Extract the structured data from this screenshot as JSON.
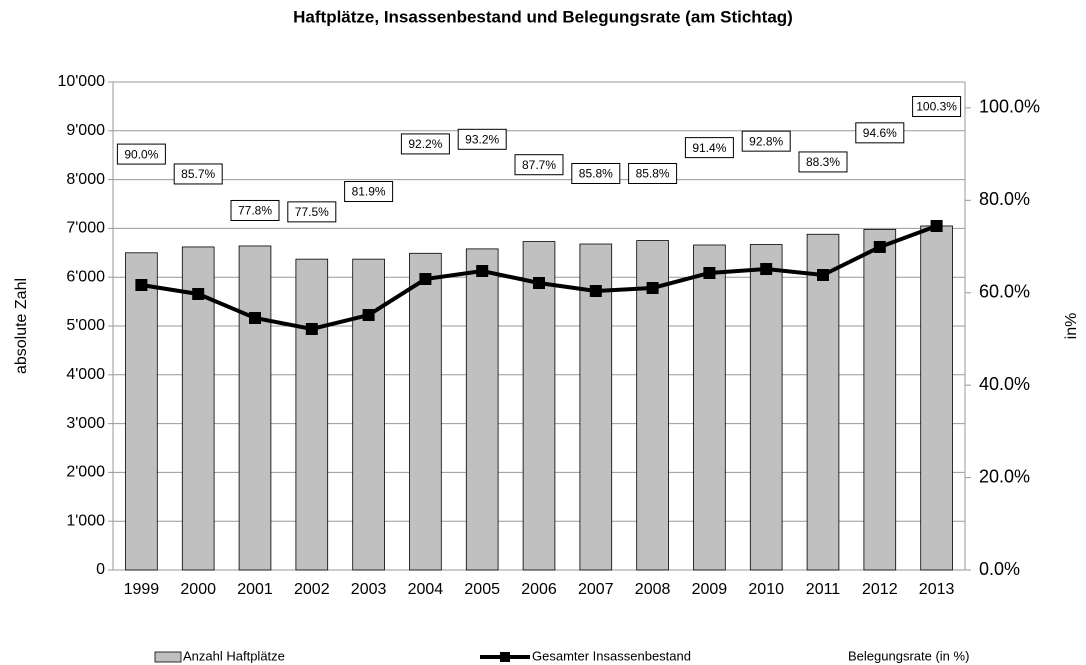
{
  "chart_data": {
    "type": "bar",
    "title": "Haftplätze, Insassenbestand und Belegungsrate (am Stichtag)",
    "y_label": "absolute Zahl",
    "y2_label": "in%",
    "categories": [
      "1999",
      "2000",
      "2001",
      "2002",
      "2003",
      "2004",
      "2005",
      "2006",
      "2007",
      "2008",
      "2009",
      "2010",
      "2011",
      "2012",
      "2013"
    ],
    "series": [
      {
        "name": "Anzahl Haftplätze",
        "type": "bar",
        "color": "#c0c0c0",
        "values": [
          6500,
          6620,
          6640,
          6370,
          6370,
          6490,
          6580,
          6730,
          6680,
          6750,
          6660,
          6670,
          6880,
          6980,
          7050
        ]
      },
      {
        "name": "Gesamter Insassenbestand",
        "type": "line",
        "color": "#000000",
        "values": [
          5840,
          5656,
          5164,
          4939,
          5225,
          5963,
          6127,
          5881,
          5717,
          5779,
          6086,
          6168,
          6045,
          6619,
          7049
        ]
      },
      {
        "name": "Belegungsrate (in %)",
        "type": "label",
        "axis": "y2",
        "values": [
          90.0,
          85.7,
          77.8,
          77.5,
          81.9,
          92.2,
          93.2,
          87.7,
          85.8,
          85.8,
          91.4,
          92.8,
          88.3,
          94.6,
          100.3
        ],
        "value_labels": [
          "90.0%",
          "85.7%",
          "77.8%",
          "77.5%",
          "81.9%",
          "92.2%",
          "93.2%",
          "87.7%",
          "85.8%",
          "85.8%",
          "91.4%",
          "92.8%",
          "88.3%",
          "94.6%",
          "100.3%"
        ]
      }
    ],
    "ylim": [
      0,
      10000
    ],
    "yticks": [
      0,
      {
        "value": 1000,
        "label": "1'000"
      },
      {
        "value": 2000,
        "label": "2'000"
      },
      {
        "value": 3000,
        "label": "3'000"
      },
      {
        "value": 4000,
        "label": "4'000"
      },
      {
        "value": 5000,
        "label": "5'000"
      },
      {
        "value": 6000,
        "label": "6'000"
      },
      {
        "value": 7000,
        "label": "7'000"
      },
      {
        "value": 8000,
        "label": "8'000"
      },
      {
        "value": 9000,
        "label": "9'000"
      },
      {
        "value": 10000,
        "label": "10'000"
      }
    ],
    "y2lim": [
      0,
      105.6
    ],
    "y2ticks": [
      {
        "value": 0,
        "label": "0.0%"
      },
      {
        "value": 20,
        "label": "20.0%"
      },
      {
        "value": 40,
        "label": "40.0%"
      },
      {
        "value": 60,
        "label": "60.0%"
      },
      {
        "value": 80,
        "label": "80.0%"
      },
      {
        "value": 100,
        "label": "100.0%"
      }
    ],
    "grid": true
  }
}
